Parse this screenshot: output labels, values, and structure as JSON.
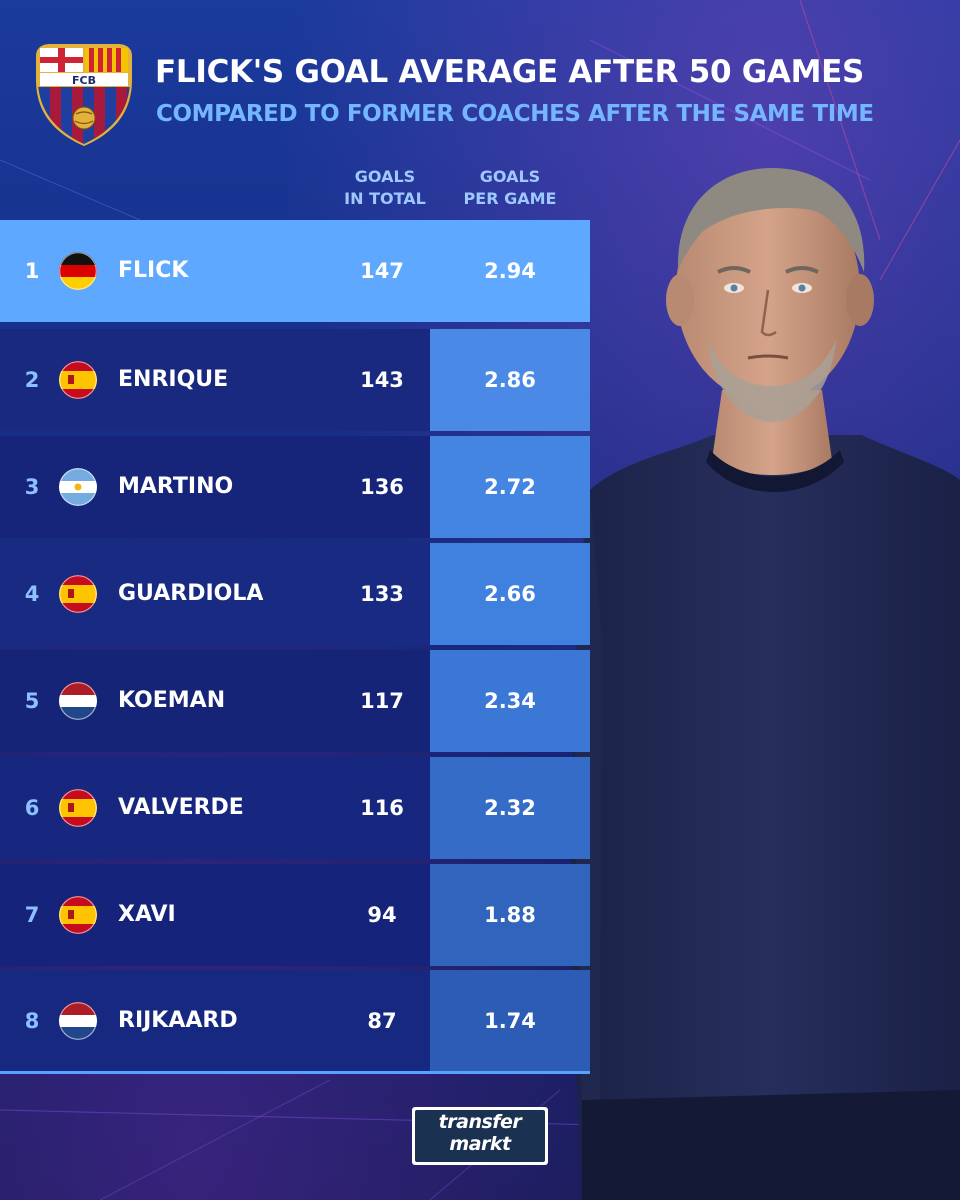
{
  "header": {
    "title": "FLICK'S GOAL AVERAGE AFTER 50 GAMES",
    "subtitle": "COMPARED TO FORMER COACHES AFTER THE SAME TIME",
    "crest_text": "FCB",
    "col_total_line1": "GOALS",
    "col_total_line2": "IN TOTAL",
    "col_avg_line1": "GOALS",
    "col_avg_line2": "PER GAME"
  },
  "logo": {
    "line1": "transfer",
    "line2": "markt"
  },
  "colors": {
    "highlight": "#5fa8ff",
    "row_dark": "#16287c",
    "row_darker": "#142066",
    "rank_text": "#8cc0ff",
    "avg_cell_light": "#3f7fde",
    "avg_cell_dark": "#2f5db8"
  },
  "chart_data": {
    "type": "table",
    "title": "FLICK'S GOAL AVERAGE AFTER 50 GAMES",
    "subtitle": "COMPARED TO FORMER COACHES AFTER THE SAME TIME",
    "columns": [
      "GOALS IN TOTAL",
      "GOALS PER GAME"
    ],
    "rows": [
      {
        "rank": "1",
        "name": "FLICK",
        "flag": "germany",
        "goals_total": "147",
        "goals_per_game": "2.94"
      },
      {
        "rank": "2",
        "name": "ENRIQUE",
        "flag": "spain",
        "goals_total": "143",
        "goals_per_game": "2.86"
      },
      {
        "rank": "3",
        "name": "MARTINO",
        "flag": "argentina",
        "goals_total": "136",
        "goals_per_game": "2.72"
      },
      {
        "rank": "4",
        "name": "GUARDIOLA",
        "flag": "spain",
        "goals_total": "133",
        "goals_per_game": "2.66"
      },
      {
        "rank": "5",
        "name": "KOEMAN",
        "flag": "netherlands",
        "goals_total": "117",
        "goals_per_game": "2.34"
      },
      {
        "rank": "6",
        "name": "VALVERDE",
        "flag": "spain",
        "goals_total": "116",
        "goals_per_game": "2.32"
      },
      {
        "rank": "7",
        "name": "XAVI",
        "flag": "spain",
        "goals_total": "94",
        "goals_per_game": "1.88"
      },
      {
        "rank": "8",
        "name": "RIJKAARD",
        "flag": "netherlands",
        "goals_total": "87",
        "goals_per_game": "1.74"
      }
    ]
  }
}
